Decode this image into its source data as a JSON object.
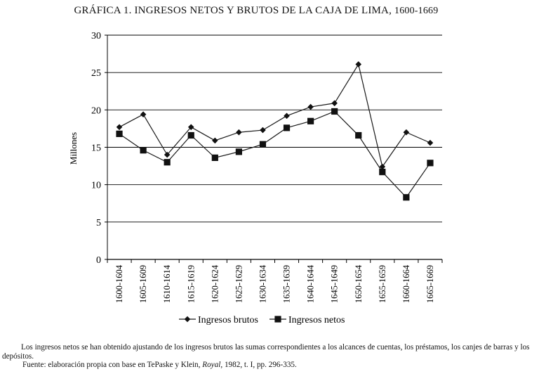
{
  "chart_data": {
    "type": "line",
    "title": "GRÁFICA 1. INGRESOS NETOS Y BRUTOS DE LA CAJA DE LIMA,",
    "title_years": "1600-1669",
    "ylabel": "Millones",
    "xlabel": "",
    "ylim": [
      0,
      30
    ],
    "yticks": [
      "0",
      "5",
      "10",
      "15",
      "20",
      "25",
      "30"
    ],
    "grid": "horizontal",
    "legend_position": "bottom",
    "categories": [
      "1600-1604",
      "1605-1609",
      "1610-1614",
      "1615-1619",
      "1620-1624",
      "1625-1629",
      "1630-1634",
      "1635-1639",
      "1640-1644",
      "1645-1649",
      "1650-1654",
      "1655-1659",
      "1660-1664",
      "1665-1669"
    ],
    "series": [
      {
        "name": "Ingresos brutos",
        "marker": "diamond",
        "color": "#1a1a1a",
        "values": [
          17.7,
          19.4,
          14.0,
          17.7,
          15.9,
          17.0,
          17.3,
          19.2,
          20.4,
          20.9,
          26.1,
          12.4,
          17.0,
          15.6
        ]
      },
      {
        "name": "Ingresos netos",
        "marker": "square",
        "color": "#1a1a1a",
        "values": [
          16.8,
          14.6,
          13.0,
          16.6,
          13.6,
          14.4,
          15.4,
          17.6,
          18.5,
          19.8,
          16.6,
          11.7,
          8.3,
          12.9
        ]
      }
    ]
  },
  "notes": {
    "main": "Los ingresos netos se han obtenido ajustando de los ingresos brutos las sumas correspondientes a los alcances de cuentas, los préstamos, los canjes de barras y los depósitos.",
    "source_prefix": "Fuente: elaboración propia con base en TePaske y Klein, ",
    "source_italic": "Royal",
    "source_suffix": ", 1982, t. I, pp. 296-335."
  }
}
